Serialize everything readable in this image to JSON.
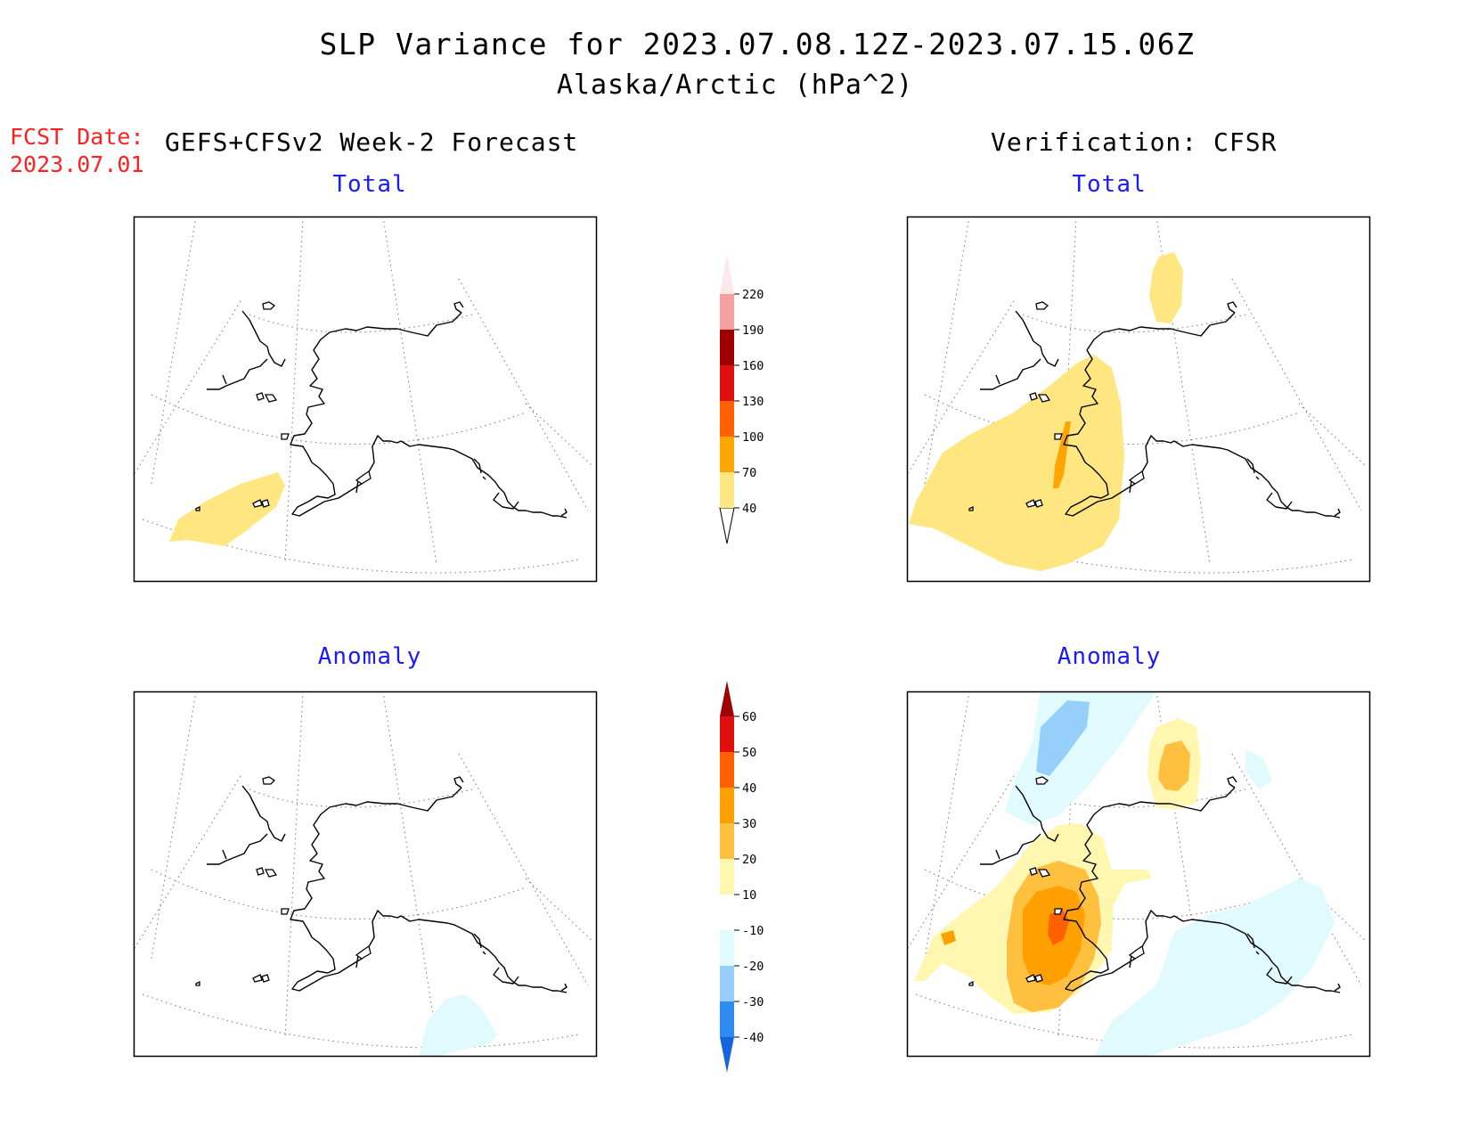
{
  "title": "SLP Variance for 2023.07.08.12Z-2023.07.15.06Z",
  "subtitle": "Alaska/Arctic (hPa^2)",
  "fcst_date_label": "FCST Date:",
  "fcst_date_value": "2023.07.01",
  "left_heading": "GEFS+CFSv2 Week-2 Forecast",
  "right_heading": "Verification: CFSR",
  "panels": {
    "forecast_total": {
      "title": "Total"
    },
    "verification_total": {
      "title": "Total"
    },
    "forecast_anomaly": {
      "title": "Anomaly"
    },
    "verification_anomaly": {
      "title": "Anomaly"
    }
  },
  "total_colorbar": {
    "ticks": [
      "40",
      "70",
      "100",
      "130",
      "160",
      "190",
      "220"
    ],
    "colors": [
      "#ffe680",
      "#ffa500",
      "#ff6000",
      "#e01010",
      "#a00000",
      "#f4a0a0",
      "#fce8e8"
    ]
  },
  "anomaly_colorbar": {
    "ticks": [
      "-40",
      "-30",
      "-20",
      "-10",
      "10",
      "20",
      "30",
      "40",
      "50",
      "60"
    ],
    "colors": [
      "#1565e0",
      "#2e8cf0",
      "#96d0fa",
      "#e0fafe",
      "#ffffff",
      "#fff6b0",
      "#ffc040",
      "#ffa000",
      "#ff6000",
      "#e01010",
      "#a00000"
    ]
  }
}
